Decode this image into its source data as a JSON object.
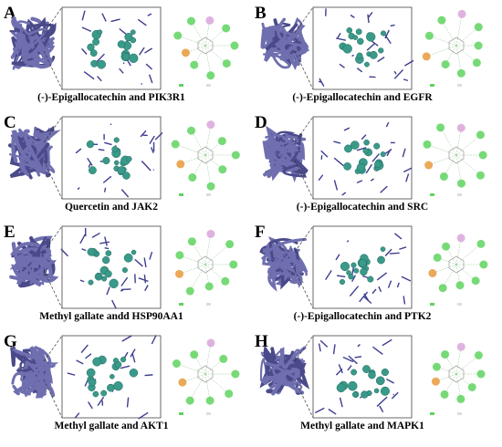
{
  "panels": [
    {
      "letter": "A",
      "caption": "(-)-Epigallocatechin and PIK3R1"
    },
    {
      "letter": "B",
      "caption": "(-)-Epigallocatechin and EGFR"
    },
    {
      "letter": "C",
      "caption": "Quercetin and JAK2"
    },
    {
      "letter": "D",
      "caption": "(-)-Epigallocatechin and SRC"
    },
    {
      "letter": "E",
      "caption": "Methyl gallate andd HSP90AA1"
    },
    {
      "letter": "F",
      "caption": "(-)-Epigallocatechin and PTK2"
    },
    {
      "letter": "G",
      "caption": "Methyl gallate and AKT1"
    },
    {
      "letter": "H",
      "caption": "Methyl gallate and MAPK1"
    }
  ]
}
